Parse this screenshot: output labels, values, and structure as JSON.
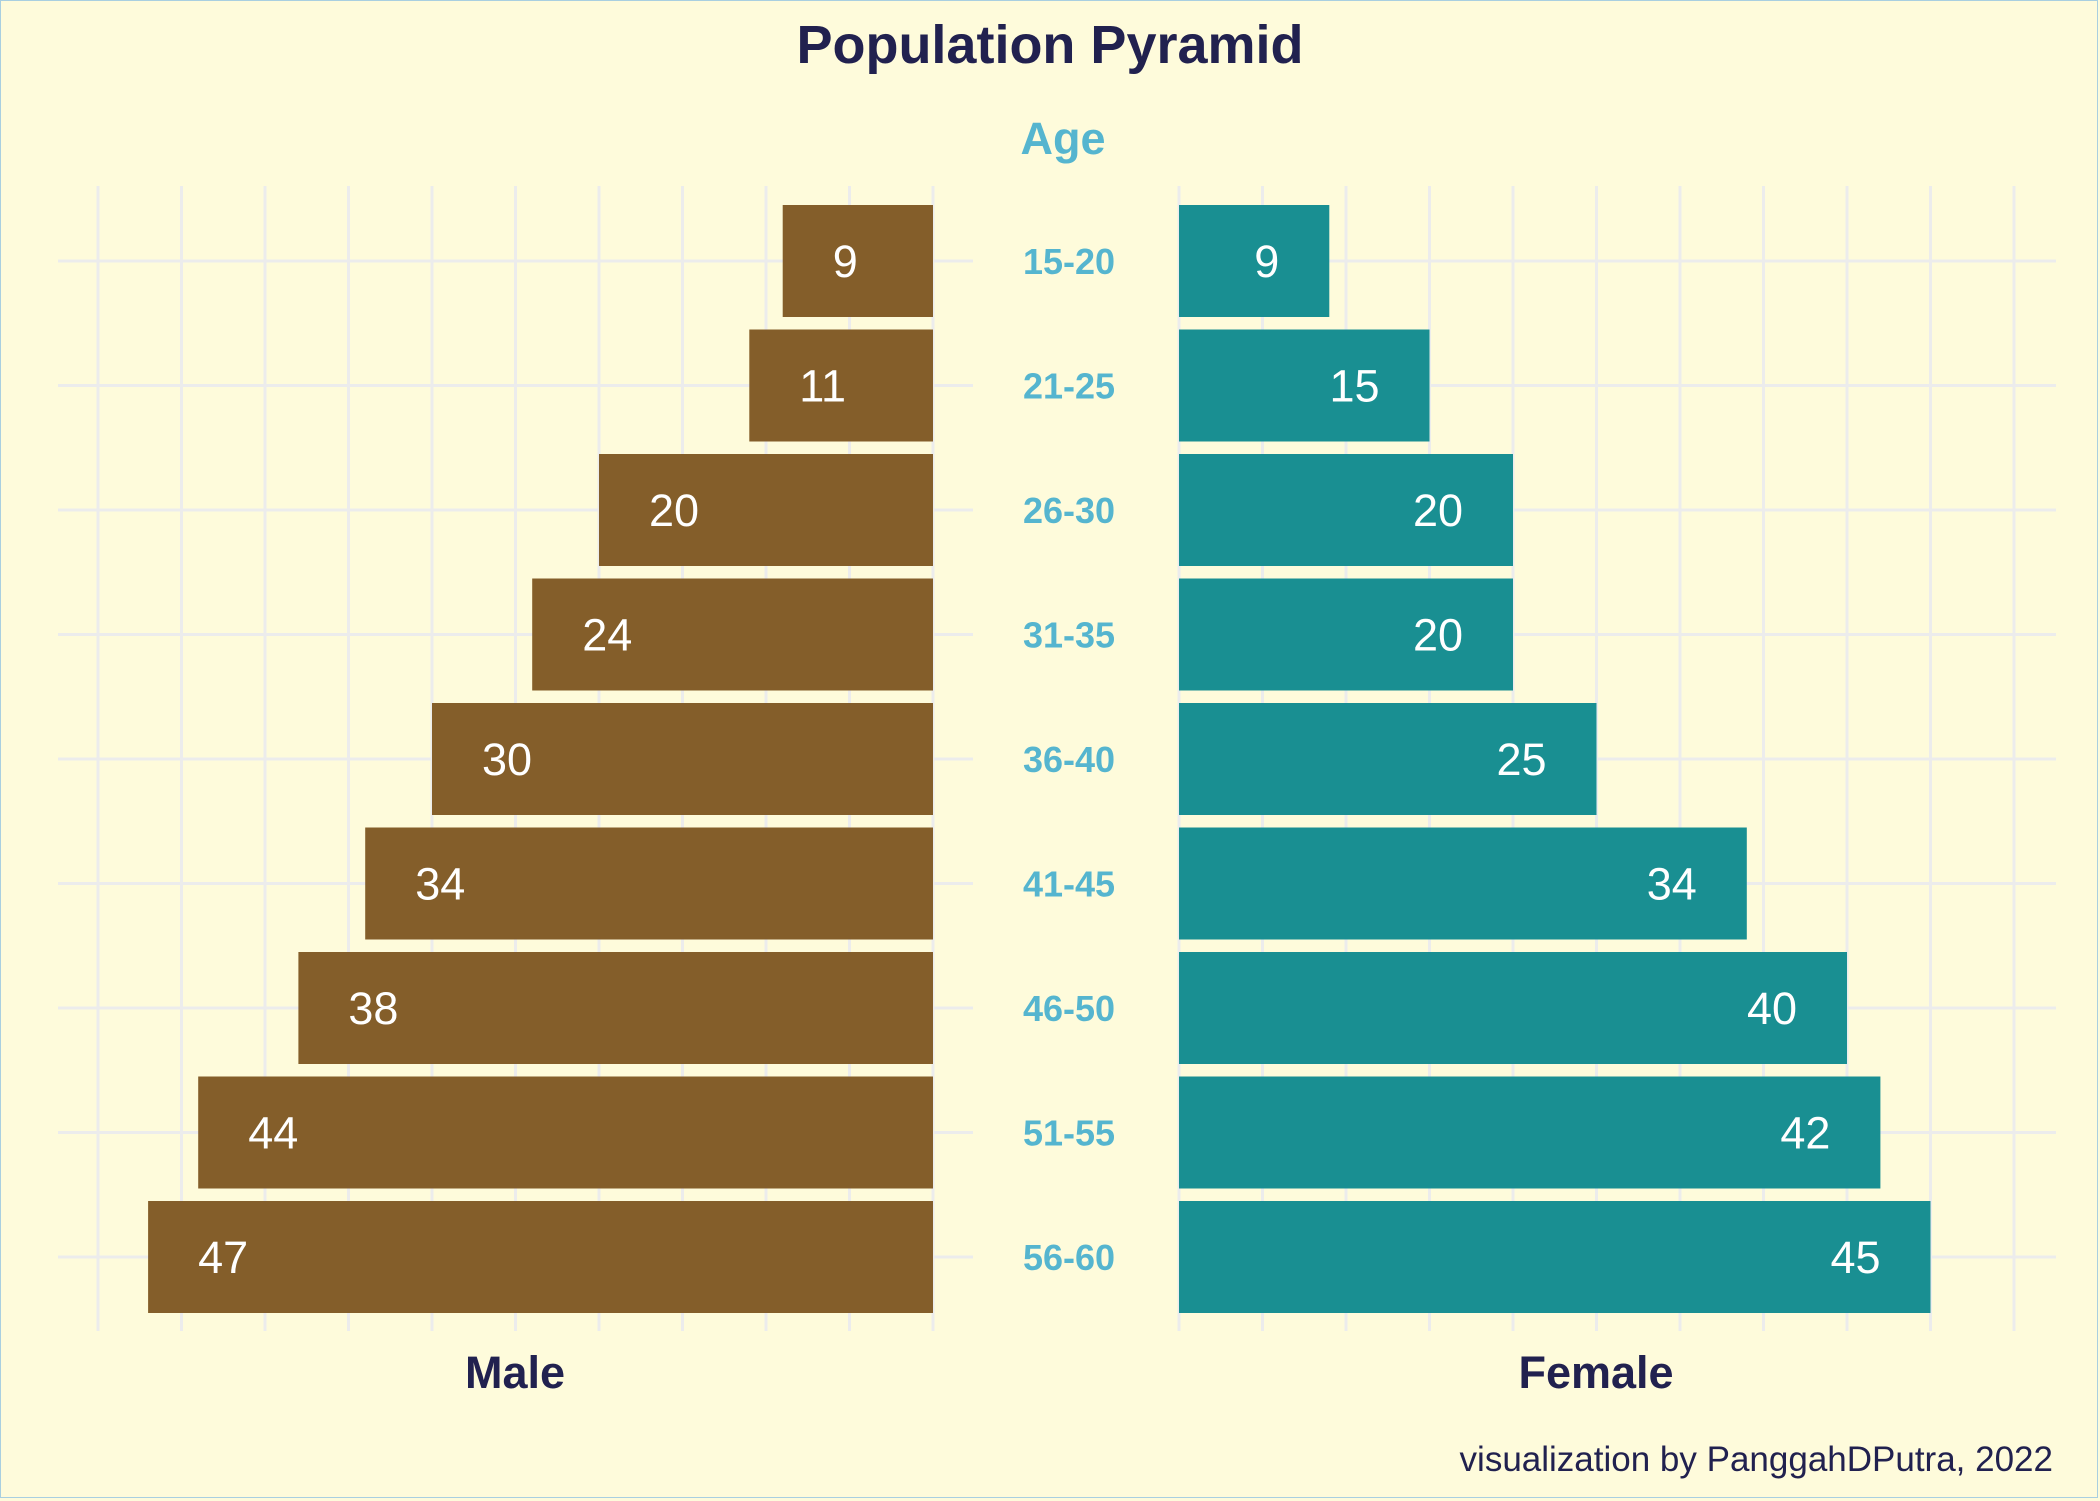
{
  "chart_data": {
    "type": "bar",
    "title": "Population Pyramid",
    "center_axis_title": "Age",
    "categories": [
      "15-20",
      "21-25",
      "26-30",
      "31-35",
      "36-40",
      "41-45",
      "46-50",
      "51-55",
      "56-60"
    ],
    "series": [
      {
        "name": "Male",
        "values": [
          9,
          11,
          20,
          24,
          30,
          34,
          38,
          44,
          47
        ],
        "color": "#845e2a"
      },
      {
        "name": "Female",
        "values": [
          9,
          15,
          20,
          20,
          25,
          34,
          40,
          42,
          45
        ],
        "color": "#198f92"
      }
    ],
    "xlim": [
      0,
      50
    ],
    "grid": true,
    "caption": "visualization by PanggahDPutra, 2022"
  },
  "colors": {
    "background": "#fefbdb",
    "title": "#21214f",
    "age_labels": "#55b5cf",
    "grid": "#ececec",
    "value_labels": "#ffffff"
  }
}
